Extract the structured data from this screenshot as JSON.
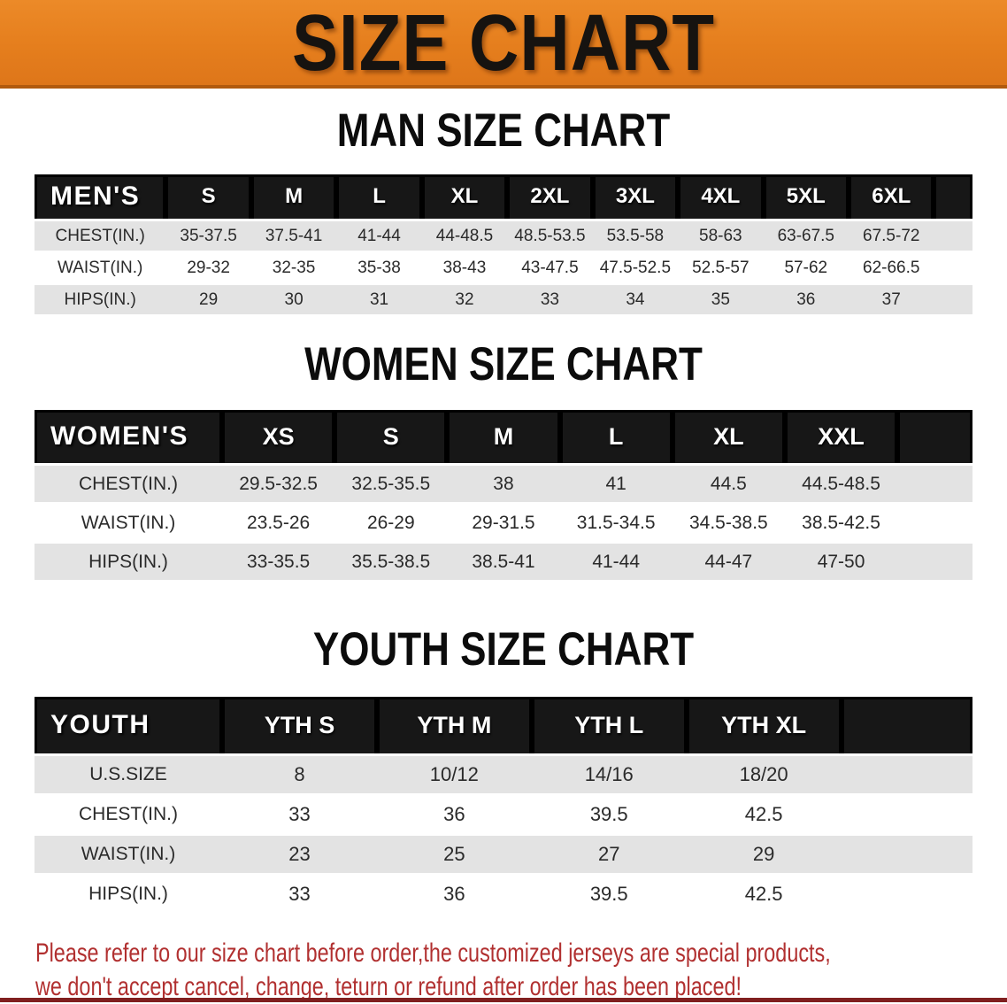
{
  "banner": {
    "title": "SIZE CHART"
  },
  "colors": {
    "banner_orange": "#E57E1D",
    "banner_orange_light": "#EC8A28",
    "banner_edge": "#B15A0E",
    "table_header_black": "#171717",
    "row_gray": "#E3E3E3",
    "notice_red": "#B13030",
    "bottom_bar_red": "#801F1F"
  },
  "sections": [
    {
      "id": "men",
      "heading": "MAN SIZE CHART",
      "group_label": "MEN'S",
      "columns": [
        "S",
        "M",
        "L",
        "XL",
        "2XL",
        "3XL",
        "4XL",
        "5XL",
        "6XL"
      ],
      "rows": [
        {
          "label": "CHEST(IN.)",
          "values": [
            "35-37.5",
            "37.5-41",
            "41-44",
            "44-48.5",
            "48.5-53.5",
            "53.5-58",
            "58-63",
            "63-67.5",
            "67.5-72"
          ]
        },
        {
          "label": "WAIST(IN.)",
          "values": [
            "29-32",
            "32-35",
            "35-38",
            "38-43",
            "43-47.5",
            "47.5-52.5",
            "52.5-57",
            "57-62",
            "62-66.5"
          ]
        },
        {
          "label": "HIPS(IN.)",
          "values": [
            "29",
            "30",
            "31",
            "32",
            "33",
            "34",
            "35",
            "36",
            "37"
          ]
        }
      ]
    },
    {
      "id": "women",
      "heading": "WOMEN SIZE CHART",
      "group_label": "WOMEN'S",
      "columns": [
        "XS",
        "S",
        "M",
        "L",
        "XL",
        "XXL"
      ],
      "rows": [
        {
          "label": "CHEST(IN.)",
          "values": [
            "29.5-32.5",
            "32.5-35.5",
            "38",
            "41",
            "44.5",
            "44.5-48.5"
          ]
        },
        {
          "label": "WAIST(IN.)",
          "values": [
            "23.5-26",
            "26-29",
            "29-31.5",
            "31.5-34.5",
            "34.5-38.5",
            "38.5-42.5"
          ]
        },
        {
          "label": "HIPS(IN.)",
          "values": [
            "33-35.5",
            "35.5-38.5",
            "38.5-41",
            "41-44",
            "44-47",
            "47-50"
          ]
        }
      ]
    },
    {
      "id": "youth",
      "heading": "YOUTH SIZE CHART",
      "group_label": "YOUTH",
      "columns": [
        "YTH S",
        "YTH M",
        "YTH L",
        "YTH XL"
      ],
      "rows": [
        {
          "label": "U.S.SIZE",
          "values": [
            "8",
            "10/12",
            "14/16",
            "18/20"
          ]
        },
        {
          "label": "CHEST(IN.)",
          "values": [
            "33",
            "36",
            "39.5",
            "42.5"
          ]
        },
        {
          "label": "WAIST(IN.)",
          "values": [
            "23",
            "25",
            "27",
            "29"
          ]
        },
        {
          "label": "HIPS(IN.)",
          "values": [
            "33",
            "36",
            "39.5",
            "42.5"
          ]
        }
      ]
    }
  ],
  "notice": {
    "line1": "Please refer to our size chart before order,the customized jerseys are special products,",
    "line2": "we don't accept cancel, change, teturn or refund after order has been placed!"
  }
}
